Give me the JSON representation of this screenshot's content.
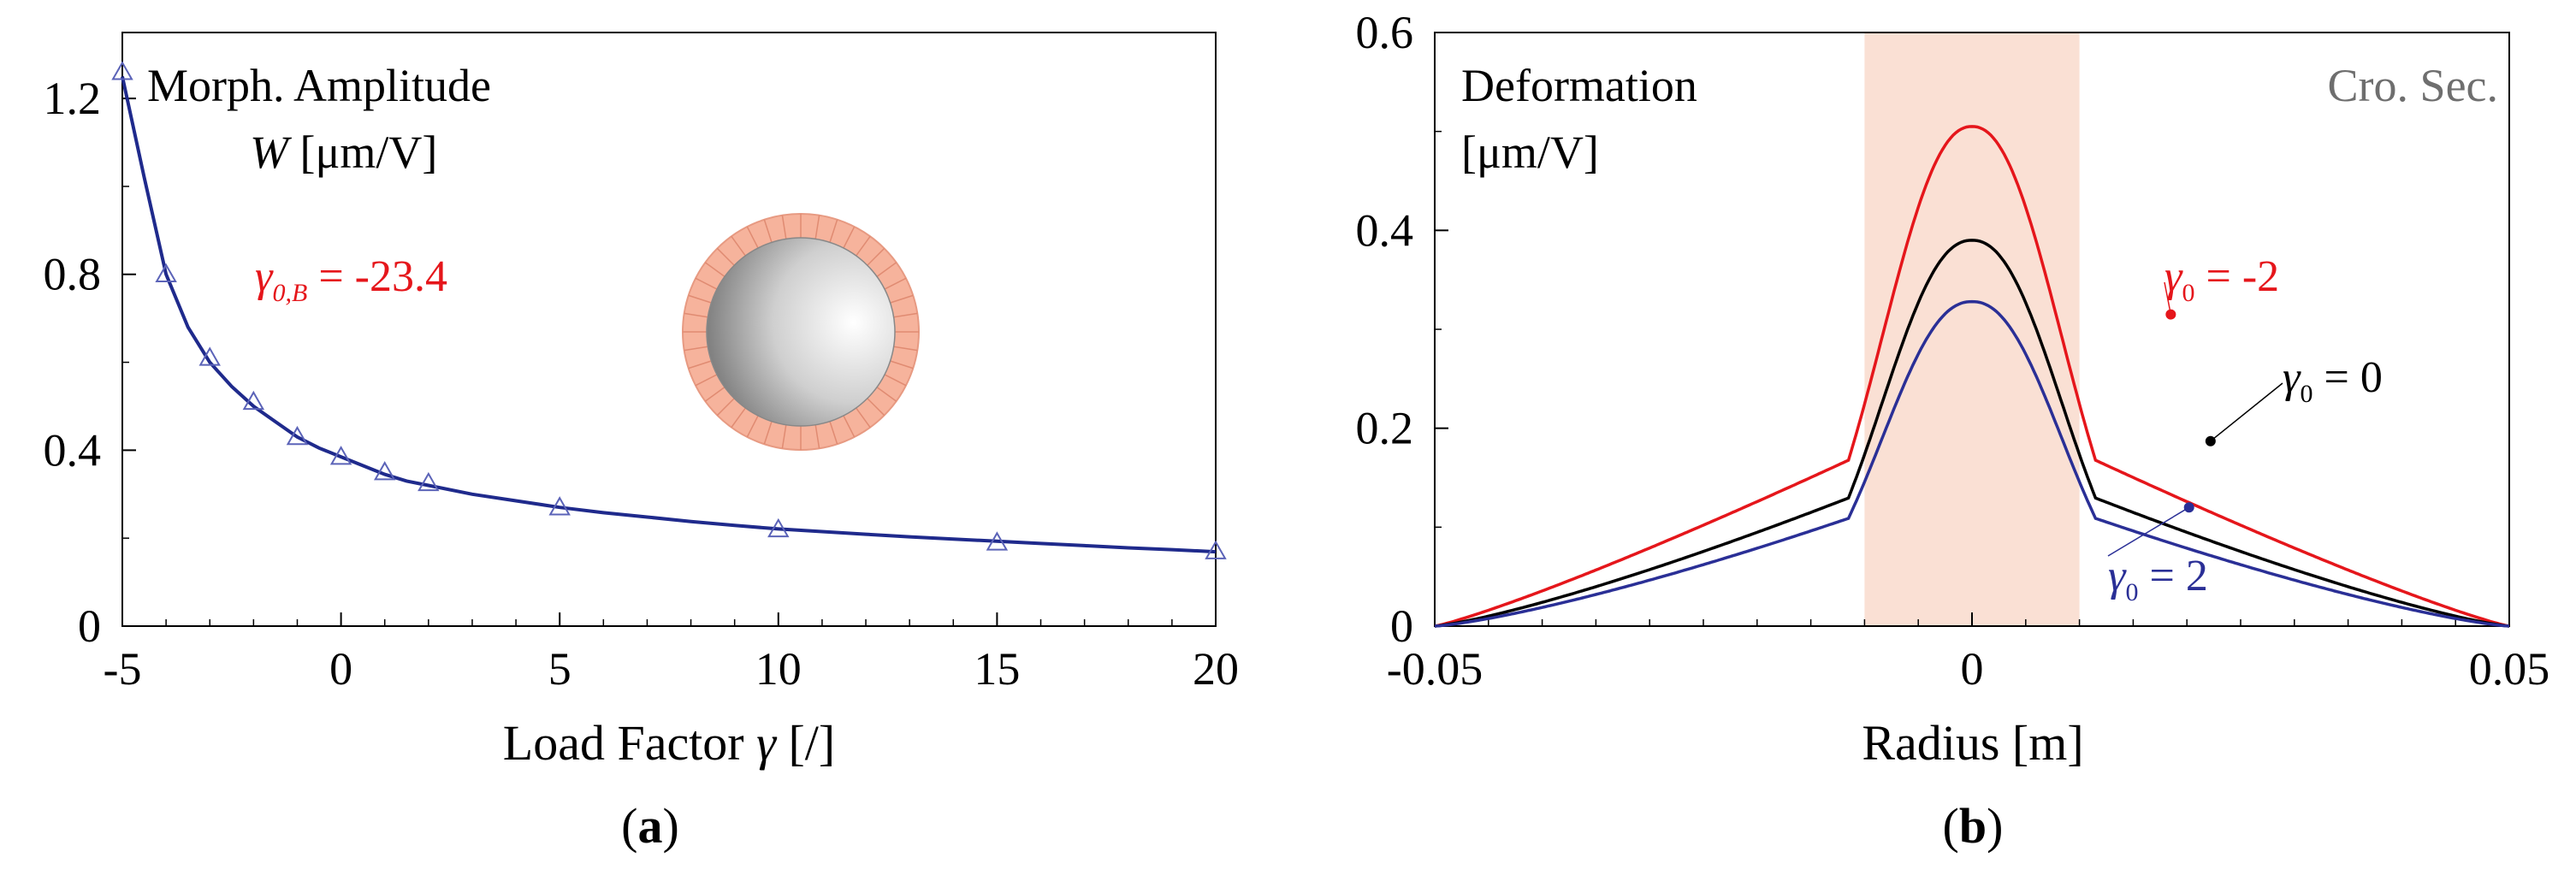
{
  "colors": {
    "curve_a": "#1f2a8c",
    "marker_a": "#5b63b8",
    "red": "#e5161b",
    "black": "#000000",
    "blue": "#2a2f96",
    "band": "#f6c6b0",
    "ring_fill": "#f4a98f",
    "gray_text": "#6e6e6e"
  },
  "chart_data": [
    {
      "id": "a",
      "type": "line",
      "panel_label_paren_open": "(",
      "panel_label_letter": "a",
      "panel_label_paren_close": ")",
      "xlabel": "Load Factor",
      "xlabel_symbol": "γ",
      "xlabel_unit": " [/]",
      "ylabel_line1": "Morph. Amplitude",
      "ylabel_symbol": "W",
      "ylabel_unit": " [μm/V]",
      "xlim": [
        -5,
        20
      ],
      "ylim": [
        0,
        1.35
      ],
      "xticks": [
        -5,
        0,
        5,
        10,
        15,
        20
      ],
      "xtick_labels": [
        "-5",
        "0",
        "5",
        "10",
        "15",
        "20"
      ],
      "yticks": [
        0,
        0.4,
        0.8,
        1.2
      ],
      "ytick_labels": [
        "0",
        "0.4",
        "0.8",
        "1.2"
      ],
      "annotation_symbol": "γ",
      "annotation_subscript": "0,B",
      "annotation_value": " = -23.4",
      "series": [
        {
          "name": "curve",
          "style": "line",
          "x": [
            -5,
            -4.5,
            -4,
            -3.5,
            -3,
            -2.5,
            -2,
            -1.5,
            -1,
            -0.5,
            0,
            0.5,
            1,
            1.5,
            2,
            3,
            4,
            5,
            6,
            7,
            8,
            9,
            10,
            11,
            12,
            13,
            14,
            15,
            16,
            17,
            18,
            19,
            20
          ],
          "y": [
            1.25,
            1.02,
            0.8,
            0.68,
            0.6,
            0.545,
            0.5,
            0.465,
            0.43,
            0.405,
            0.385,
            0.365,
            0.345,
            0.33,
            0.32,
            0.3,
            0.285,
            0.27,
            0.258,
            0.248,
            0.238,
            0.229,
            0.221,
            0.215,
            0.209,
            0.203,
            0.198,
            0.193,
            0.188,
            0.183,
            0.178,
            0.174,
            0.169
          ]
        },
        {
          "name": "markers",
          "style": "triangle",
          "x": [
            -5,
            -4,
            -3,
            -2,
            -1,
            0,
            1,
            2,
            5,
            10,
            15,
            20
          ],
          "y": [
            1.26,
            0.8,
            0.61,
            0.51,
            0.43,
            0.385,
            0.35,
            0.325,
            0.27,
            0.22,
            0.19,
            0.17
          ]
        }
      ]
    },
    {
      "id": "b",
      "type": "line",
      "panel_label_paren_open": "(",
      "panel_label_letter": "b",
      "panel_label_paren_close": ")",
      "xlabel": "Radius [m]",
      "ylabel_line1": "Deformation",
      "ylabel_line2": "[μm/V]",
      "corner_label": "Cro. Sec.",
      "xlim": [
        -0.05,
        0.05
      ],
      "ylim": [
        0,
        0.6
      ],
      "xticks": [
        -0.05,
        0,
        0.05
      ],
      "xtick_labels": [
        "-0.05",
        "0",
        "0.05"
      ],
      "yticks": [
        0,
        0.2,
        0.4,
        0.6
      ],
      "ytick_labels": [
        "0",
        "0.2",
        "0.4",
        "0.6"
      ],
      "shaded_band": [
        -0.01,
        0.01
      ],
      "series": [
        {
          "name": "γ0 = -2",
          "label_symbol": "γ",
          "label_sub": "0",
          "label_value": " = -2",
          "color_key": "red",
          "peak": 0.505,
          "inner_width": 0.011,
          "inner_exp": 2.2,
          "edge": 0.0115,
          "outer_exp": 1.15,
          "label_anchor_x": 0.0185,
          "label_anchor_y": 0.315
        },
        {
          "name": "γ0 = 0",
          "label_symbol": "γ",
          "label_sub": "0",
          "label_value": " = 0",
          "color_key": "black",
          "peak": 0.39,
          "inner_width": 0.011,
          "inner_exp": 2.2,
          "edge": 0.0115,
          "outer_exp": 1.25,
          "label_anchor_x": 0.0222,
          "label_anchor_y": 0.187
        },
        {
          "name": "γ0 = 2",
          "label_symbol": "γ",
          "label_sub": "0",
          "label_value": " = 2",
          "color_key": "blue",
          "peak": 0.328,
          "inner_width": 0.011,
          "inner_exp": 2.2,
          "edge": 0.0115,
          "outer_exp": 1.3,
          "label_anchor_x": 0.0202,
          "label_anchor_y": 0.12
        }
      ]
    }
  ]
}
